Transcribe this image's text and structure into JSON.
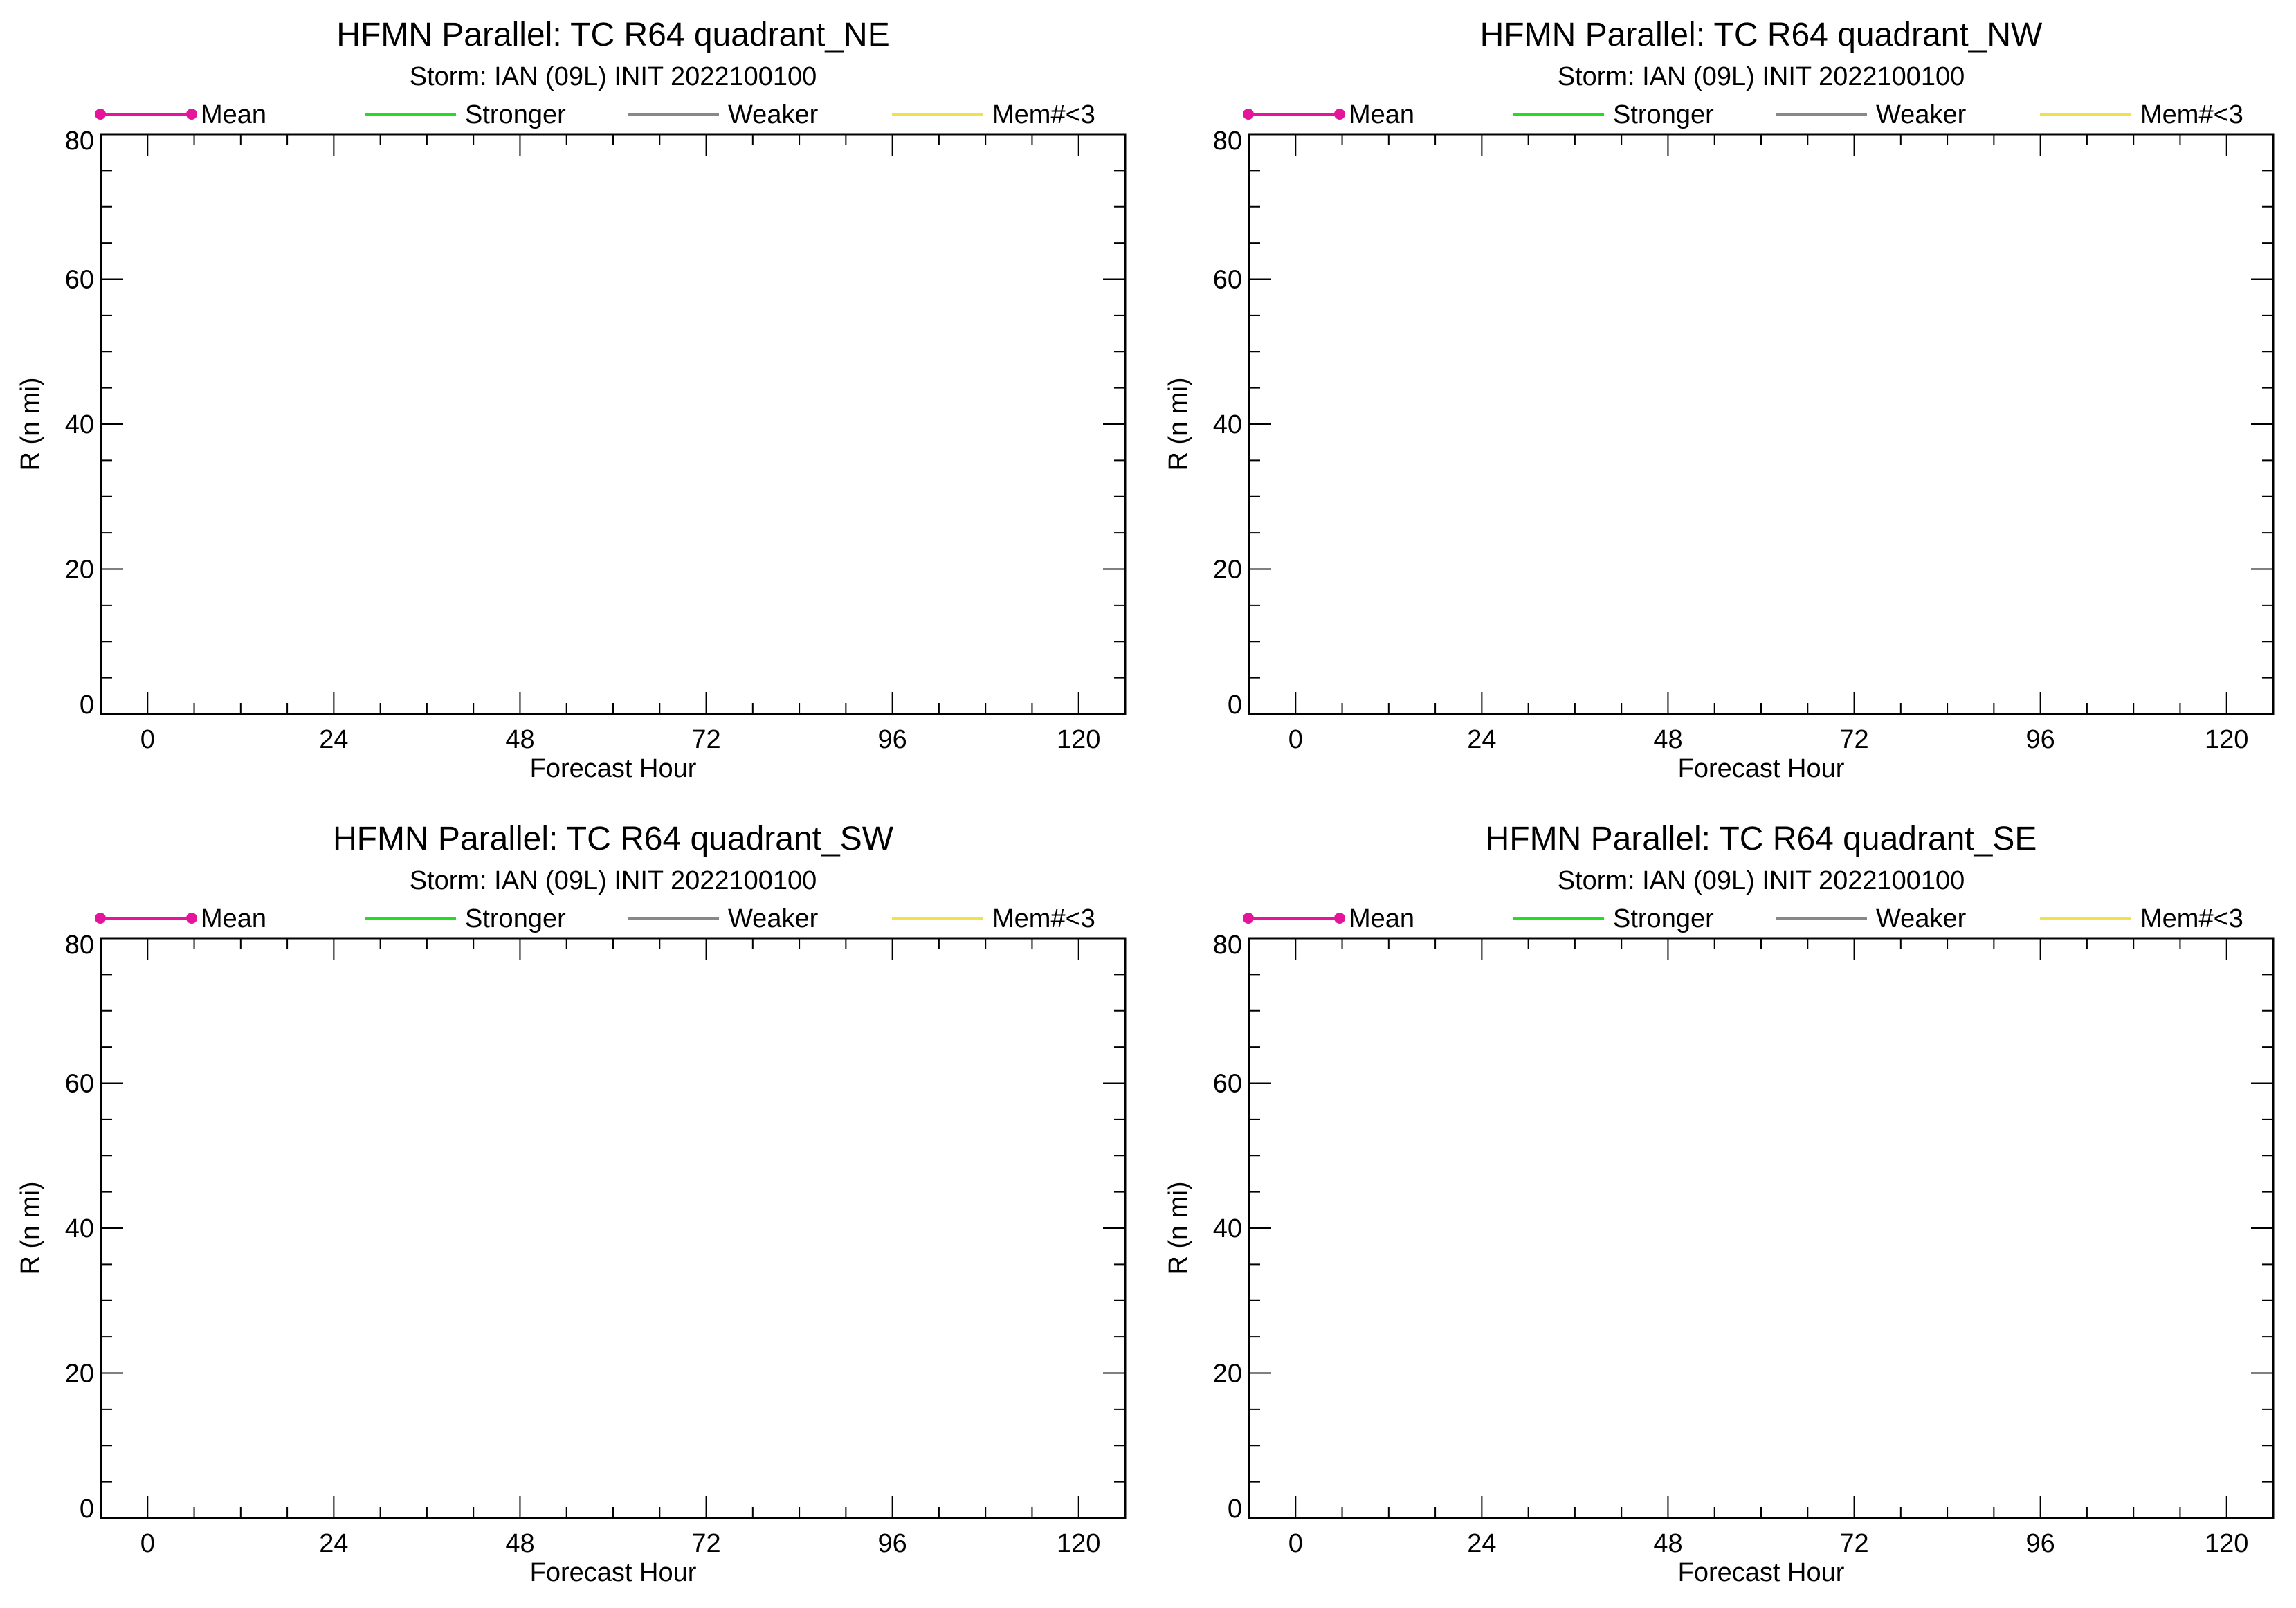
{
  "colors": {
    "mean": "#e6149b",
    "stronger": "#22dd22",
    "weaker": "#888888",
    "few_members": "#f2e24a",
    "axes": "#000000",
    "background": "#ffffff"
  },
  "chart_data": [
    {
      "type": "line",
      "title": "HFMN Parallel: TC  R64 quadrant_NE",
      "subtitle": "Storm: IAN (09L) INIT 2022100100",
      "xlabel": "Forecast Hour",
      "ylabel": "R (n mi)",
      "xlim": [
        -6,
        126
      ],
      "ylim": [
        0,
        80
      ],
      "x_ticks": [
        0,
        24,
        48,
        72,
        96,
        120
      ],
      "y_ticks": [
        0,
        20,
        40,
        60,
        80
      ],
      "x_minor_step": 6,
      "y_minor_step": 5,
      "grid": false,
      "legend_position": "top",
      "legend": [
        "Mean",
        "Stronger",
        "Weaker",
        "Mem#<3"
      ],
      "series": []
    },
    {
      "type": "line",
      "title": "HFMN Parallel: TC  R64 quadrant_NW",
      "subtitle": "Storm: IAN (09L) INIT 2022100100",
      "xlabel": "Forecast Hour",
      "ylabel": "R (n mi)",
      "xlim": [
        -6,
        126
      ],
      "ylim": [
        0,
        80
      ],
      "x_ticks": [
        0,
        24,
        48,
        72,
        96,
        120
      ],
      "y_ticks": [
        0,
        20,
        40,
        60,
        80
      ],
      "x_minor_step": 6,
      "y_minor_step": 5,
      "grid": false,
      "legend_position": "top",
      "legend": [
        "Mean",
        "Stronger",
        "Weaker",
        "Mem#<3"
      ],
      "series": []
    },
    {
      "type": "line",
      "title": "HFMN Parallel: TC  R64 quadrant_SW",
      "subtitle": "Storm: IAN (09L) INIT 2022100100",
      "xlabel": "Forecast Hour",
      "ylabel": "R (n mi)",
      "xlim": [
        -6,
        126
      ],
      "ylim": [
        0,
        80
      ],
      "x_ticks": [
        0,
        24,
        48,
        72,
        96,
        120
      ],
      "y_ticks": [
        0,
        20,
        40,
        60,
        80
      ],
      "x_minor_step": 6,
      "y_minor_step": 5,
      "grid": false,
      "legend_position": "top",
      "legend": [
        "Mean",
        "Stronger",
        "Weaker",
        "Mem#<3"
      ],
      "series": []
    },
    {
      "type": "line",
      "title": "HFMN Parallel: TC  R64 quadrant_SE",
      "subtitle": "Storm: IAN (09L) INIT 2022100100",
      "xlabel": "Forecast Hour",
      "ylabel": "R (n mi)",
      "xlim": [
        -6,
        126
      ],
      "ylim": [
        0,
        80
      ],
      "x_ticks": [
        0,
        24,
        48,
        72,
        96,
        120
      ],
      "y_ticks": [
        0,
        20,
        40,
        60,
        80
      ],
      "x_minor_step": 6,
      "y_minor_step": 5,
      "grid": false,
      "legend_position": "top",
      "legend": [
        "Mean",
        "Stronger",
        "Weaker",
        "Mem#<3"
      ],
      "series": []
    }
  ]
}
